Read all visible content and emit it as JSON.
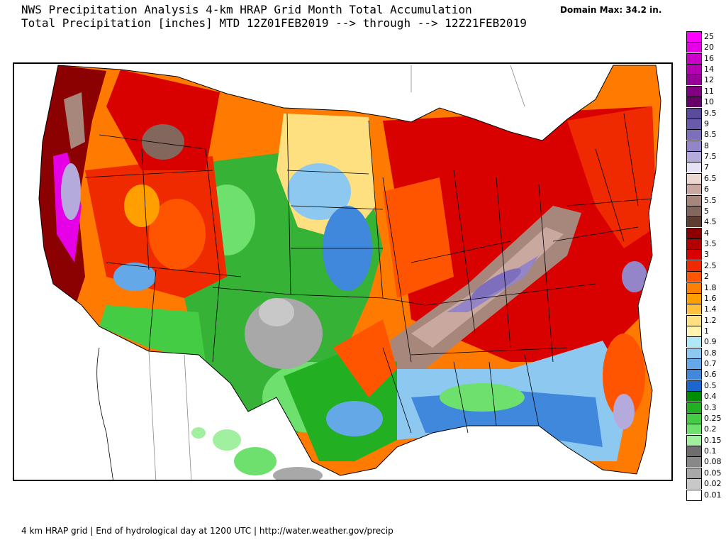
{
  "header": {
    "title_line1": "NWS Precipitation Analysis 4-km HRAP Grid Month Total Accumulation",
    "title_line2": "Total Precipitation [inches] MTD 12Z01FEB2019 --> through --> 12Z21FEB2019",
    "domain_max": "Domain Max: 34.2 in."
  },
  "footer": "4 km HRAP grid | End of hydrological day at 1200 UTC | http://water.weather.gov/precip",
  "legend": {
    "entries": [
      {
        "label": "25",
        "color": "#ff00ff"
      },
      {
        "label": "20",
        "color": "#e600e6"
      },
      {
        "label": "16",
        "color": "#cc00cc"
      },
      {
        "label": "14",
        "color": "#b300b3"
      },
      {
        "label": "12",
        "color": "#990099"
      },
      {
        "label": "11",
        "color": "#800080"
      },
      {
        "label": "10",
        "color": "#660066"
      },
      {
        "label": "9.5",
        "color": "#5c4a9c"
      },
      {
        "label": "9",
        "color": "#6a5aaa"
      },
      {
        "label": "8.5",
        "color": "#7d6fbc"
      },
      {
        "label": "8",
        "color": "#9385c8"
      },
      {
        "label": "7.5",
        "color": "#b4aadc"
      },
      {
        "label": "7",
        "color": "#e6e2f2"
      },
      {
        "label": "6.5",
        "color": "#ecd8d0"
      },
      {
        "label": "6",
        "color": "#c9a8a0"
      },
      {
        "label": "5.5",
        "color": "#a7877c"
      },
      {
        "label": "5",
        "color": "#83665c"
      },
      {
        "label": "4.5",
        "color": "#5e3e33"
      },
      {
        "label": "4",
        "color": "#8b0000"
      },
      {
        "label": "3.5",
        "color": "#b30000"
      },
      {
        "label": "3",
        "color": "#d90000"
      },
      {
        "label": "2.5",
        "color": "#f02a00"
      },
      {
        "label": "2",
        "color": "#ff5500"
      },
      {
        "label": "1.8",
        "color": "#ff8000"
      },
      {
        "label": "1.6",
        "color": "#ffa000"
      },
      {
        "label": "1.4",
        "color": "#ffc040"
      },
      {
        "label": "1.2",
        "color": "#ffe080"
      },
      {
        "label": "1",
        "color": "#fff5b0"
      },
      {
        "label": "0.9",
        "color": "#b0e8f5"
      },
      {
        "label": "0.8",
        "color": "#8cc8f0"
      },
      {
        "label": "0.7",
        "color": "#64a8e8"
      },
      {
        "label": "0.6",
        "color": "#4088dc"
      },
      {
        "label": "0.5",
        "color": "#1a66cc"
      },
      {
        "label": "0.4",
        "color": "#008c00"
      },
      {
        "label": "0.3",
        "color": "#22b022"
      },
      {
        "label": "0.25",
        "color": "#44cc44"
      },
      {
        "label": "0.2",
        "color": "#6ee06e"
      },
      {
        "label": "0.15",
        "color": "#a0f0a0"
      },
      {
        "label": "0.1",
        "color": "#6e6e6e"
      },
      {
        "label": "0.08",
        "color": "#888888"
      },
      {
        "label": "0.05",
        "color": "#a8a8a8"
      },
      {
        "label": "0.02",
        "color": "#c8c8c8"
      },
      {
        "label": "0.01",
        "color": "#ffffff"
      }
    ]
  }
}
